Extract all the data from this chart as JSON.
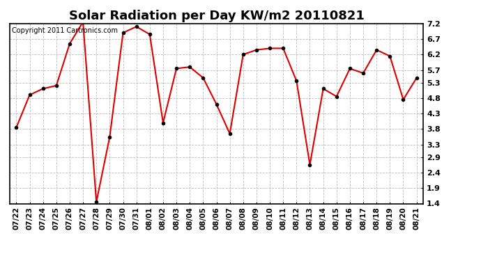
{
  "title": "Solar Radiation per Day KW/m2 20110821",
  "copyright": "Copyright 2011 Cartronics.com",
  "dates": [
    "07/22",
    "07/23",
    "07/24",
    "07/25",
    "07/26",
    "07/27",
    "07/28",
    "07/29",
    "07/30",
    "07/31",
    "08/01",
    "08/02",
    "08/03",
    "08/04",
    "08/05",
    "08/06",
    "08/07",
    "08/08",
    "08/09",
    "08/10",
    "08/11",
    "08/12",
    "08/13",
    "08/14",
    "08/15",
    "08/16",
    "08/17",
    "08/18",
    "08/19",
    "08/20",
    "08/21"
  ],
  "values": [
    3.85,
    4.9,
    5.1,
    5.2,
    6.55,
    7.25,
    1.45,
    3.55,
    6.9,
    7.1,
    6.85,
    4.0,
    5.75,
    5.8,
    5.45,
    4.6,
    3.65,
    6.2,
    6.35,
    6.4,
    6.4,
    5.35,
    2.65,
    5.1,
    4.85,
    5.75,
    5.6,
    6.35,
    6.15,
    4.75,
    5.45
  ],
  "line_color": "#dd0000",
  "marker_color": "#000000",
  "ylim": [
    1.4,
    7.2
  ],
  "yticks": [
    1.4,
    1.9,
    2.4,
    2.9,
    3.3,
    3.8,
    4.3,
    4.8,
    5.3,
    5.7,
    6.2,
    6.7,
    7.2
  ],
  "grid_color": "#bbbbbb",
  "bg_color": "#ffffff",
  "title_fontsize": 13,
  "tick_fontsize": 7.5,
  "copyright_fontsize": 7,
  "figwidth": 6.9,
  "figheight": 3.75,
  "dpi": 100
}
